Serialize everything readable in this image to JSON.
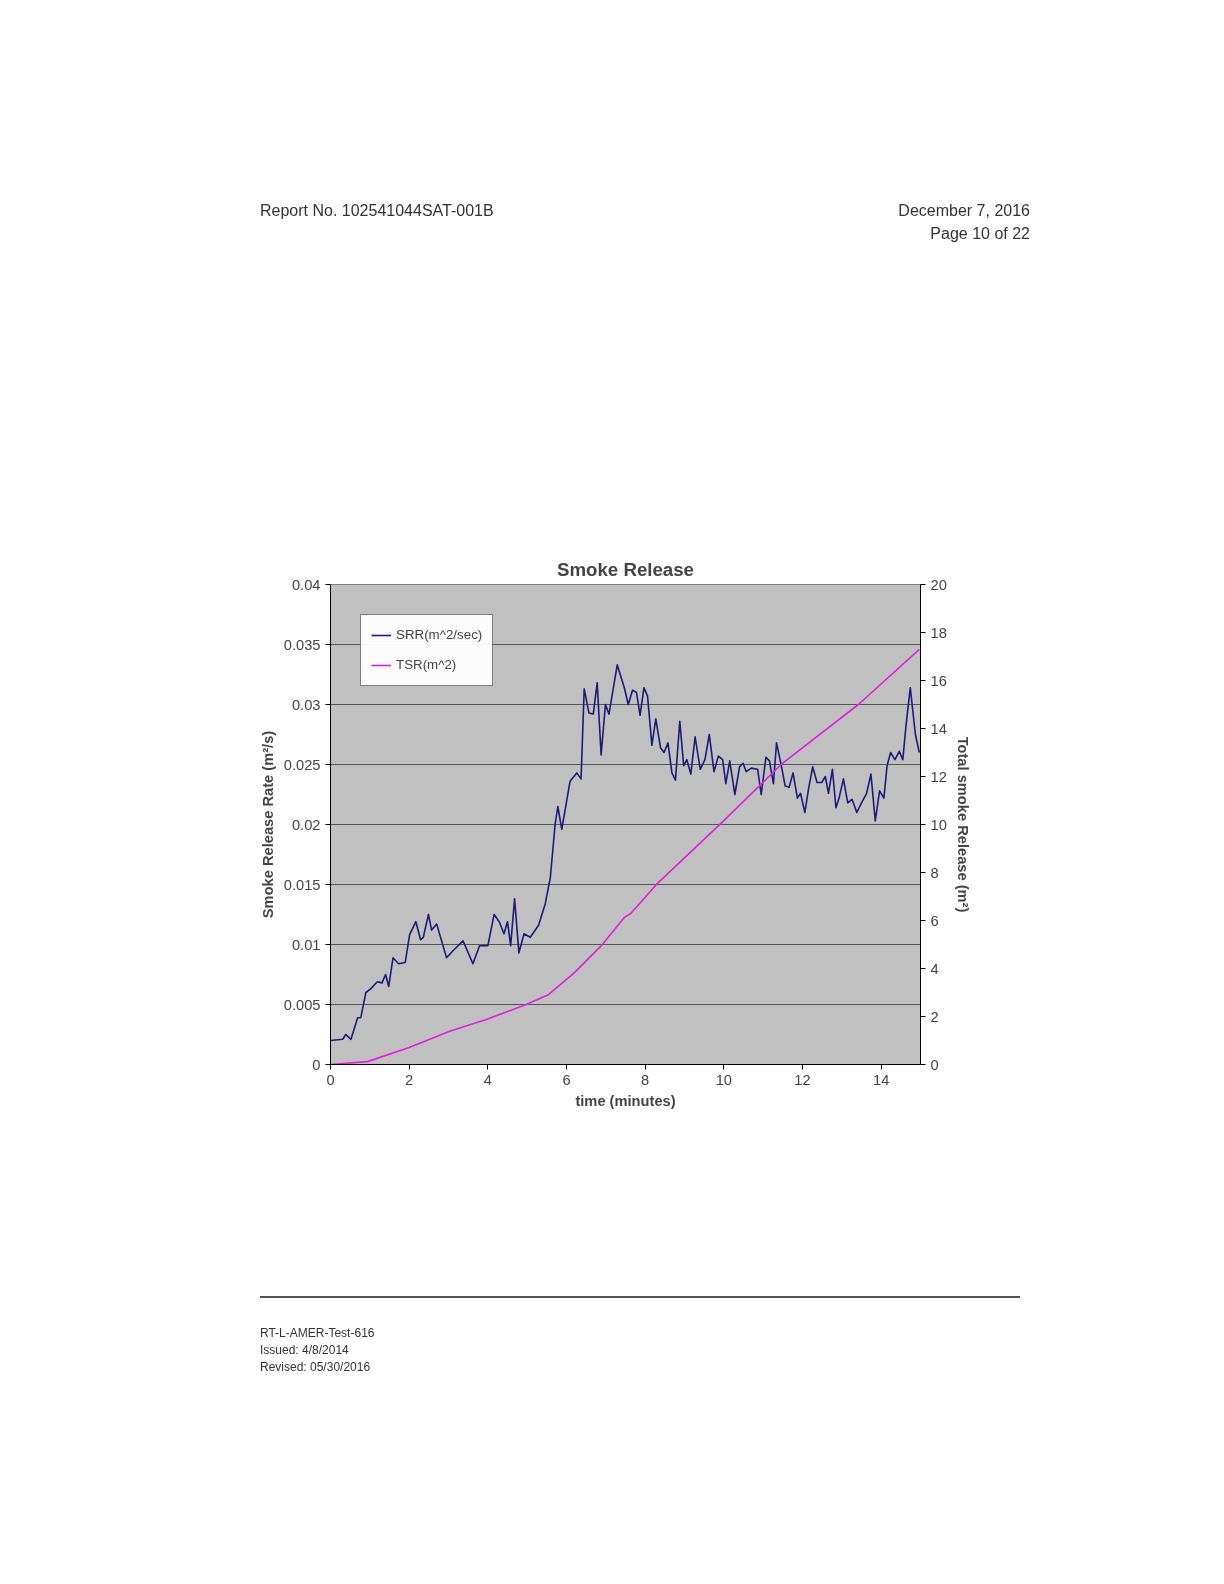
{
  "chart_data": {
    "type": "line",
    "title": "Smoke Release",
    "xlabel": "time (minutes)",
    "ylabel": "Smoke Release Rate (m²/s)",
    "y2label": "Total smoke Release (m²)",
    "xlim": [
      0,
      15
    ],
    "xticks": [
      0,
      2,
      4,
      6,
      8,
      10,
      12,
      14
    ],
    "ylim": [
      0,
      0.04
    ],
    "yticks": [
      0,
      0.005,
      0.01,
      0.015,
      0.02,
      0.025,
      0.03,
      0.035,
      0.04
    ],
    "y2lim": [
      0,
      20
    ],
    "y2ticks": [
      0,
      2,
      4,
      6,
      8,
      10,
      12,
      14,
      16,
      18,
      20
    ],
    "grid": "y",
    "legend": "top left",
    "line_style": "solid",
    "series": [
      {
        "name": "SRR(m^2/sec)",
        "color": "#1c1c78",
        "x": [
          0,
          0.31,
          0.39,
          0.52,
          0.69,
          0.77,
          0.9,
          1.02,
          1.19,
          1.31,
          1.4,
          1.48,
          1.59,
          1.73,
          1.9,
          2.01,
          2.17,
          2.29,
          2.36,
          2.49,
          2.57,
          2.7,
          2.95,
          3.12,
          3.37,
          3.62,
          3.79,
          4.0,
          4.16,
          4.29,
          4.41,
          4.5,
          4.58,
          4.68,
          4.79,
          4.92,
          5.08,
          5.29,
          5.46,
          5.59,
          5.71,
          5.78,
          5.88,
          6.09,
          6.26,
          6.37,
          6.45,
          6.57,
          6.68,
          6.78,
          6.88,
          6.99,
          7.08,
          7.29,
          7.47,
          7.57,
          7.68,
          7.78,
          7.87,
          7.97,
          8.06,
          8.17,
          8.27,
          8.39,
          8.48,
          8.58,
          8.68,
          8.77,
          8.88,
          8.98,
          9.06,
          9.16,
          9.27,
          9.4,
          9.52,
          9.63,
          9.75,
          9.86,
          9.97,
          10.05,
          10.15,
          10.28,
          10.4,
          10.49,
          10.57,
          10.7,
          10.86,
          10.95,
          11.07,
          11.16,
          11.26,
          11.34,
          11.45,
          11.56,
          11.66,
          11.76,
          11.87,
          11.95,
          12.06,
          12.16,
          12.26,
          12.37,
          12.49,
          12.58,
          12.66,
          12.76,
          12.85,
          12.93,
          13.04,
          13.15,
          13.26,
          13.38,
          13.5,
          13.63,
          13.74,
          13.85,
          13.96,
          14.07,
          14.15,
          14.24,
          14.35,
          14.46,
          14.55,
          14.63,
          14.74,
          14.87,
          14.97
        ],
        "values": [
          0.002,
          0.0021,
          0.0025,
          0.0021,
          0.0039,
          0.0039,
          0.006,
          0.0063,
          0.0069,
          0.0068,
          0.0075,
          0.0065,
          0.0089,
          0.0084,
          0.0085,
          0.0108,
          0.0119,
          0.0104,
          0.0106,
          0.0125,
          0.0112,
          0.0117,
          0.0089,
          0.0095,
          0.0103,
          0.0084,
          0.0099,
          0.0099,
          0.0125,
          0.0119,
          0.0109,
          0.0119,
          0.0099,
          0.0138,
          0.0093,
          0.0109,
          0.0106,
          0.0116,
          0.0134,
          0.0156,
          0.02,
          0.0215,
          0.0196,
          0.0236,
          0.0243,
          0.0238,
          0.0313,
          0.0293,
          0.0292,
          0.0318,
          0.0258,
          0.03,
          0.0292,
          0.0333,
          0.0314,
          0.03,
          0.0312,
          0.031,
          0.0291,
          0.0314,
          0.0307,
          0.0266,
          0.0288,
          0.0264,
          0.026,
          0.0268,
          0.0243,
          0.0237,
          0.0286,
          0.0249,
          0.0254,
          0.0242,
          0.0273,
          0.0246,
          0.0254,
          0.0275,
          0.0244,
          0.0257,
          0.0254,
          0.0234,
          0.0253,
          0.0225,
          0.0248,
          0.0251,
          0.0244,
          0.0247,
          0.0246,
          0.0225,
          0.0256,
          0.0253,
          0.0234,
          0.0268,
          0.0251,
          0.0232,
          0.0231,
          0.0243,
          0.0222,
          0.0226,
          0.021,
          0.0231,
          0.0248,
          0.0235,
          0.0235,
          0.024,
          0.0226,
          0.0246,
          0.0214,
          0.0222,
          0.0238,
          0.0218,
          0.0221,
          0.021,
          0.0218,
          0.0226,
          0.0242,
          0.0203,
          0.0228,
          0.0222,
          0.0249,
          0.026,
          0.0254,
          0.0261,
          0.0254,
          0.0282,
          0.0314,
          0.0275,
          0.026
        ]
      },
      {
        "name": "TSR(m^2)",
        "color": "#e020e0",
        "axis": "y2",
        "x": [
          0,
          0.94,
          2.0,
          3.03,
          4.0,
          4.96,
          5.54,
          6.21,
          6.88,
          7.47,
          7.64,
          8.32,
          9.96,
          11.49,
          13.42,
          14.97
        ],
        "values": [
          0,
          0.12,
          0.71,
          1.39,
          1.9,
          2.49,
          2.91,
          3.84,
          4.94,
          6.13,
          6.3,
          7.56,
          10.1,
          12.55,
          15.0,
          17.3
        ]
      }
    ],
    "annotations": [
      "Report No. 102541044SAT-001B",
      "December 7,  2016",
      "Page 10 of 22",
      "RT-L-AMER-Test-616",
      "Issued: 4/8/2014",
      "Revised: 05/30/2016"
    ]
  }
}
